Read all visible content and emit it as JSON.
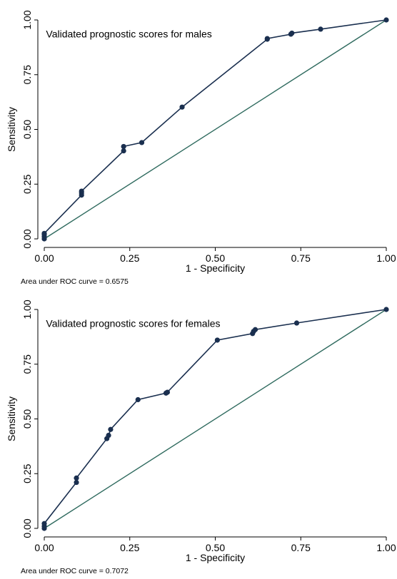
{
  "chart_data": [
    {
      "type": "line",
      "panel_id": "males",
      "annotation": "Validated prognostic scores for males",
      "xlabel": "1 - Specificity",
      "ylabel": "Sensitivity",
      "xlim": [
        0,
        1
      ],
      "ylim": [
        0,
        1
      ],
      "x_ticks": [
        "0.00",
        "0.25",
        "0.50",
        "0.75",
        "1.00"
      ],
      "y_ticks": [
        "0.00",
        "0.25",
        "0.50",
        "0.75",
        "1.00"
      ],
      "note": "Area under ROC curve = 0.6575",
      "grid": false,
      "colors": {
        "curve": "#1a2f4f",
        "reference": "#2e6a5e"
      },
      "series": [
        {
          "x": [
            0.0,
            0.0,
            0.0,
            0.0,
            0.109,
            0.109,
            0.109,
            0.232,
            0.232,
            0.285,
            0.403,
            0.652,
            0.652,
            0.721,
            0.724,
            0.808,
            1.0
          ],
          "y": [
            0.0,
            0.01,
            0.02,
            0.025,
            0.2,
            0.21,
            0.218,
            0.402,
            0.422,
            0.44,
            0.602,
            0.912,
            0.915,
            0.935,
            0.94,
            0.958,
            1.0
          ]
        },
        {
          "x": [
            0,
            1
          ],
          "y": [
            0,
            1
          ]
        }
      ]
    },
    {
      "type": "line",
      "panel_id": "females",
      "annotation": "Validated prognostic scores for females",
      "xlabel": "1 - Specificity",
      "ylabel": "Sensitivity",
      "xlim": [
        0,
        1
      ],
      "ylim": [
        0,
        1
      ],
      "x_ticks": [
        "0.00",
        "0.25",
        "0.50",
        "0.75",
        "1.00"
      ],
      "y_ticks": [
        "0.00",
        "0.25",
        "0.50",
        "0.75",
        "1.00"
      ],
      "note": "Area under ROC curve = 0.7072",
      "grid": false,
      "colors": {
        "curve": "#1a2f4f",
        "reference": "#2e6a5e"
      },
      "series": [
        {
          "x": [
            0.0,
            0.0,
            0.0,
            0.094,
            0.094,
            0.183,
            0.188,
            0.194,
            0.274,
            0.356,
            0.36,
            0.506,
            0.609,
            0.612,
            0.617,
            0.738,
            1.0
          ],
          "y": [
            0.0,
            0.01,
            0.022,
            0.21,
            0.23,
            0.41,
            0.425,
            0.452,
            0.588,
            0.618,
            0.622,
            0.86,
            0.89,
            0.9,
            0.908,
            0.938,
            1.0
          ]
        },
        {
          "x": [
            0,
            1
          ],
          "y": [
            0,
            1
          ]
        }
      ]
    }
  ]
}
